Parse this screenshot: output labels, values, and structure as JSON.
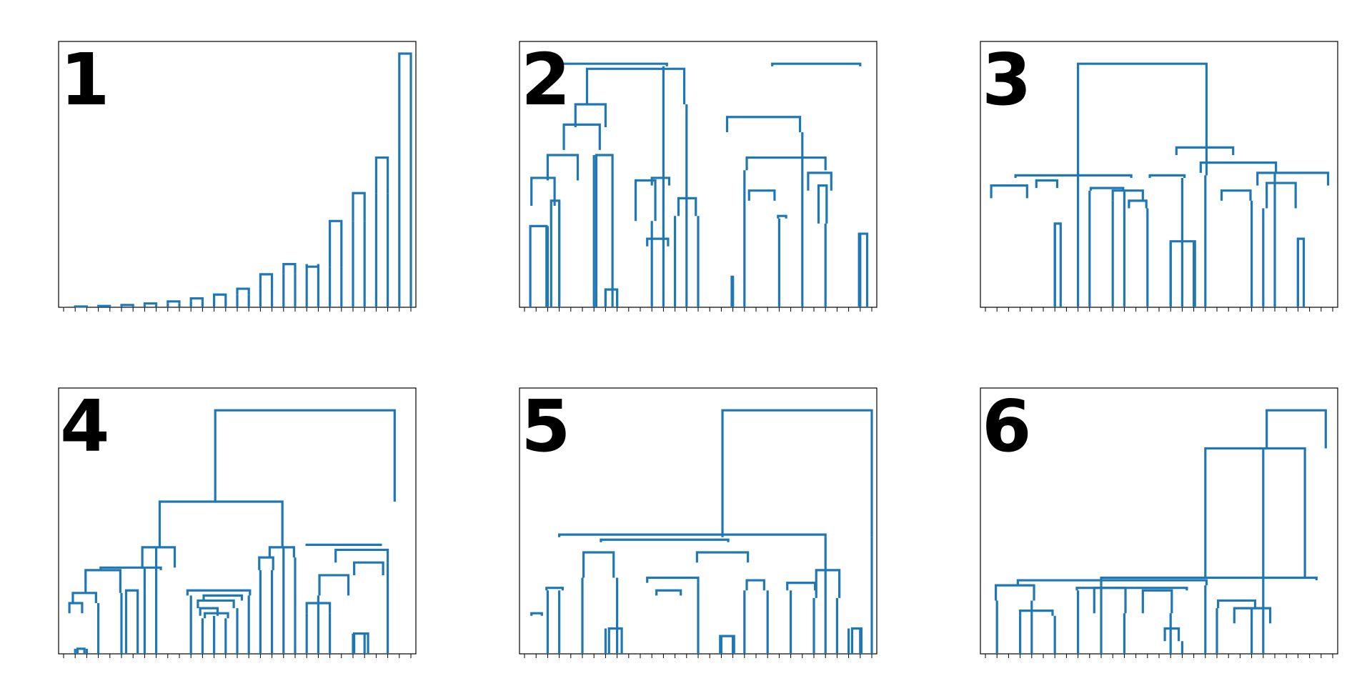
{
  "figure": {
    "link_color": "#1f77b4",
    "frame_color": "#000000",
    "background": "#ffffff"
  },
  "panels": [
    {
      "label": "1"
    },
    {
      "label": "2"
    },
    {
      "label": "3"
    },
    {
      "label": "4"
    },
    {
      "label": "5"
    },
    {
      "label": "6"
    }
  ],
  "chart_data": [
    {
      "type": "dendrogram",
      "panel": "1",
      "ylim": [
        0,
        1
      ],
      "leaf_count": 31,
      "axis_labels_shown": false,
      "links": [
        [
          [
            30,
            29
          ],
          [
            0.59,
            1.0
          ]
        ],
        [
          [
            28,
            27
          ],
          [
            0.45,
            0.59
          ]
        ],
        [
          [
            26,
            25
          ],
          [
            0.34,
            0.45
          ]
        ],
        [
          [
            24,
            23
          ],
          [
            0.16,
            0.34
          ]
        ],
        [
          [
            22,
            21
          ],
          [
            0.17,
            0.16
          ]
        ],
        [
          [
            20,
            19
          ],
          [
            0.13,
            0.17
          ]
        ],
        [
          [
            18,
            17
          ],
          [
            0.073,
            0.13
          ]
        ],
        [
          [
            16,
            15
          ],
          [
            0.05,
            0.073
          ]
        ],
        [
          [
            14,
            13
          ],
          [
            0.035,
            0.05
          ]
        ],
        [
          [
            12,
            11
          ],
          [
            0.023,
            0.035
          ]
        ],
        [
          [
            10,
            9
          ],
          [
            0.015,
            0.023
          ]
        ],
        [
          [
            8,
            7
          ],
          [
            0.009,
            0.015
          ]
        ],
        [
          [
            6,
            5
          ],
          [
            0.005,
            0.009
          ]
        ],
        [
          [
            4,
            3
          ],
          [
            0.003,
            0.005
          ]
        ],
        [
          [
            2,
            1
          ],
          [
            0.001,
            0.003
          ]
        ],
        [
          [
            0,
            0
          ],
          [
            0,
            0.001
          ]
        ]
      ]
    },
    {
      "type": "dendrogram",
      "panel": "2",
      "ylim": [
        0,
        1
      ],
      "leaf_count": 31,
      "axis_labels_shown": false,
      "links": [
        [
          [
            3.1,
            12.3
          ],
          [
            0.95,
            0.96
          ]
        ],
        [
          [
            21.4,
            29.0
          ],
          [
            0.95,
            0.96
          ]
        ],
        [
          [
            5.4,
            13.8
          ],
          [
            0.8,
            0.94
          ]
        ],
        [
          [
            17.5,
            23.8
          ],
          [
            0.69,
            0.75
          ]
        ],
        [
          [
            19.2,
            26.0
          ],
          [
            0.54,
            0.59
          ]
        ],
        [
          [
            4.4,
            7.0
          ],
          [
            0.71,
            0.8
          ]
        ],
        [
          [
            3.4,
            6.5
          ],
          [
            0.62,
            0.72
          ]
        ],
        [
          [
            2.0,
            4.6
          ],
          [
            0.5,
            0.6
          ]
        ],
        [
          [
            0.6,
            2.6
          ],
          [
            0.4,
            0.51
          ]
        ],
        [
          [
            0.5,
            1.9
          ],
          [
            0.0,
            0.32
          ]
        ],
        [
          [
            2.3,
            3.0
          ],
          [
            0.0,
            0.42
          ]
        ],
        [
          [
            6.2,
            7.6
          ],
          [
            0.0,
            0.6
          ]
        ],
        [
          [
            7.0,
            8.0
          ],
          [
            0.0,
            0.07
          ]
        ],
        [
          [
            11.0,
            12.5
          ],
          [
            0.48,
            0.51
          ]
        ],
        [
          [
            9.6,
            11.3
          ],
          [
            0.34,
            0.5
          ]
        ],
        [
          [
            10.6,
            12.4
          ],
          [
            0.24,
            0.27
          ]
        ],
        [
          [
            13.3,
            14.8
          ],
          [
            0.36,
            0.43
          ]
        ],
        [
          [
            19.4,
            21.6
          ],
          [
            0.42,
            0.46
          ]
        ],
        [
          [
            21.9,
            22.6
          ],
          [
            0.35,
            0.36
          ]
        ],
        [
          [
            24.5,
            26.5
          ],
          [
            0.46,
            0.53
          ]
        ],
        [
          [
            25.4,
            26.1
          ],
          [
            0.33,
            0.48
          ]
        ],
        [
          [
            28.9,
            29.6
          ],
          [
            0.0,
            0.29
          ]
        ],
        [
          [
            17.9,
            18.0
          ],
          [
            0.0,
            0.12
          ]
        ]
      ]
    },
    {
      "type": "dendrogram",
      "panel": "3",
      "ylim": [
        0,
        1
      ],
      "leaf_count": 31,
      "axis_labels_shown": false,
      "links": [
        [
          [
            8.0,
            19.1
          ],
          [
            0.52,
            0.96
          ]
        ],
        [
          [
            16.5,
            21.4
          ],
          [
            0.6,
            0.63
          ]
        ],
        [
          [
            18.6,
            25.1
          ],
          [
            0.53,
            0.57
          ]
        ],
        [
          [
            23.5,
            29.6
          ],
          [
            0.48,
            0.53
          ]
        ],
        [
          [
            2.6,
            12.6
          ],
          [
            0.51,
            0.52
          ]
        ],
        [
          [
            0.5,
            3.6
          ],
          [
            0.43,
            0.48
          ]
        ],
        [
          [
            4.4,
            6.2
          ],
          [
            0.47,
            0.5
          ]
        ],
        [
          [
            9.1,
            11.9
          ],
          [
            0.46,
            0.47
          ]
        ],
        [
          [
            11.0,
            13.6
          ],
          [
            0.42,
            0.46
          ]
        ],
        [
          [
            12.4,
            13.9
          ],
          [
            0.39,
            0.42
          ]
        ],
        [
          [
            20.4,
            22.9
          ],
          [
            0.42,
            0.46
          ]
        ],
        [
          [
            24.3,
            26.8
          ],
          [
            0.39,
            0.49
          ]
        ],
        [
          [
            14.2,
            17.2
          ],
          [
            0.51,
            0.52
          ]
        ],
        [
          [
            16.0,
            18.1
          ],
          [
            0.0,
            0.26
          ]
        ],
        [
          [
            6.0,
            6.5
          ],
          [
            0.0,
            0.33
          ]
        ],
        [
          [
            27.0,
            27.5
          ],
          [
            0.0,
            0.27
          ]
        ]
      ]
    },
    {
      "type": "dendrogram",
      "panel": "4",
      "ylim": [
        0,
        1
      ],
      "leaf_count": 31,
      "axis_labels_shown": false,
      "links": [
        [
          [
            13.1,
            28.6
          ],
          [
            0.6,
            0.96
          ]
        ],
        [
          [
            8.3,
            18.9
          ],
          [
            0.42,
            0.6
          ]
        ],
        [
          [
            6.8,
            9.6
          ],
          [
            0.34,
            0.42
          ]
        ],
        [
          [
            17.8,
            19.9
          ],
          [
            0.38,
            0.42
          ]
        ],
        [
          [
            3.2,
            8.4
          ],
          [
            0.33,
            0.34
          ]
        ],
        [
          [
            1.9,
            4.9
          ],
          [
            0.24,
            0.33
          ]
        ],
        [
          [
            0.8,
            2.8
          ],
          [
            0.2,
            0.24
          ]
        ],
        [
          [
            0.5,
            1.6
          ],
          [
            0.16,
            0.2
          ]
        ],
        [
          [
            1.2,
            1.8
          ],
          [
            0.0,
            0.02
          ]
        ],
        [
          [
            5.4,
            6.4
          ],
          [
            0.0,
            0.25
          ]
        ],
        [
          [
            10.7,
            16.1
          ],
          [
            0.23,
            0.25
          ]
        ],
        [
          [
            12.1,
            15.4
          ],
          [
            0.21,
            0.23
          ]
        ],
        [
          [
            11.6,
            14.7
          ],
          [
            0.18,
            0.21
          ]
        ],
        [
          [
            11.8,
            13.3
          ],
          [
            0.15,
            0.18
          ]
        ],
        [
          [
            12.2,
            14.2
          ],
          [
            0.14,
            0.16
          ]
        ],
        [
          [
            16.9,
            18.1
          ],
          [
            0.33,
            0.38
          ]
        ],
        [
          [
            20.9,
            27.5
          ],
          [
            0.43,
            0.43
          ]
        ],
        [
          [
            23.5,
            28.0
          ],
          [
            0.36,
            0.41
          ]
        ],
        [
          [
            25.1,
            27.6
          ],
          [
            0.31,
            0.36
          ]
        ],
        [
          [
            22.1,
            24.6
          ],
          [
            0.23,
            0.31
          ]
        ],
        [
          [
            21.0,
            23.0
          ],
          [
            0.16,
            0.2
          ]
        ],
        [
          [
            25.1,
            26.3
          ],
          [
            0.0,
            0.08
          ]
        ]
      ]
    },
    {
      "type": "dendrogram",
      "panel": "5",
      "ylim": [
        0,
        1
      ],
      "leaf_count": 31,
      "axis_labels_shown": false,
      "links": [
        [
          [
            17.1,
            30.0
          ],
          [
            0.46,
            0.96
          ]
        ],
        [
          [
            3.0,
            26.0
          ],
          [
            0.46,
            0.47
          ]
        ],
        [
          [
            6.6,
            17.6
          ],
          [
            0.44,
            0.45
          ]
        ],
        [
          [
            1.9,
            3.3
          ],
          [
            0.25,
            0.26
          ]
        ],
        [
          [
            0.6,
            1.5
          ],
          [
            0.15,
            0.16
          ]
        ],
        [
          [
            5.1,
            7.7
          ],
          [
            0.3,
            0.4
          ]
        ],
        [
          [
            7.3,
            8.4
          ],
          [
            0.0,
            0.1
          ]
        ],
        [
          [
            10.6,
            15.0
          ],
          [
            0.28,
            0.3
          ]
        ],
        [
          [
            11.4,
            13.5
          ],
          [
            0.23,
            0.25
          ]
        ],
        [
          [
            14.9,
            19.3
          ],
          [
            0.36,
            0.4
          ]
        ],
        [
          [
            16.9,
            18.1
          ],
          [
            0.0,
            0.07
          ]
        ],
        [
          [
            19.2,
            20.7
          ],
          [
            0.25,
            0.29
          ]
        ],
        [
          [
            22.7,
            25.1
          ],
          [
            0.25,
            0.28
          ]
        ],
        [
          [
            25.2,
            27.2
          ],
          [
            0.22,
            0.33
          ]
        ],
        [
          [
            28.3,
            29.1
          ],
          [
            0.0,
            0.1
          ]
        ]
      ]
    },
    {
      "type": "dendrogram",
      "panel": "6",
      "ylim": [
        0,
        1
      ],
      "leaf_count": 31,
      "axis_labels_shown": false,
      "links": [
        [
          [
            24.3,
            29.4
          ],
          [
            0.81,
            0.96
          ]
        ],
        [
          [
            19.0,
            27.6
          ],
          [
            0.3,
            0.81
          ]
        ],
        [
          [
            10.0,
            28.6
          ],
          [
            0.29,
            0.3
          ]
        ],
        [
          [
            2.8,
            19.1
          ],
          [
            0.27,
            0.29
          ]
        ],
        [
          [
            0.9,
            4.2
          ],
          [
            0.21,
            0.27
          ]
        ],
        [
          [
            3.0,
            5.8
          ],
          [
            0.15,
            0.17
          ]
        ],
        [
          [
            7.9,
            17.4
          ],
          [
            0.25,
            0.26
          ]
        ],
        [
          [
            9.4,
            12.1
          ],
          [
            0.16,
            0.26
          ]
        ],
        [
          [
            13.6,
            16.1
          ],
          [
            0.16,
            0.25
          ]
        ],
        [
          [
            15.5,
            16.7
          ],
          [
            0.05,
            0.1
          ]
        ],
        [
          [
            20.1,
            23.3
          ],
          [
            0.18,
            0.21
          ]
        ],
        [
          [
            21.5,
            24.6
          ],
          [
            0.12,
            0.18
          ]
        ]
      ]
    }
  ]
}
